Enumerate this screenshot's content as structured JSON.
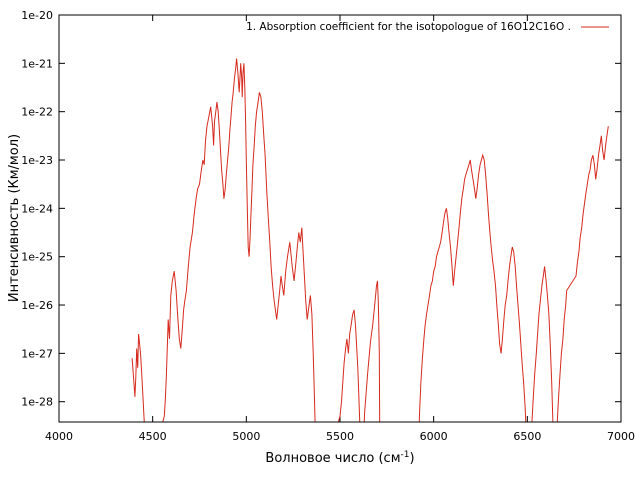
{
  "chart_data": {
    "type": "line",
    "title": "",
    "xlabel": "Волновое число (см",
    "xlabel_sup": "-1",
    "xlabel_tail": ")",
    "ylabel": "Интенсивность (Км/мол)",
    "xlim": [
      4000,
      7000
    ],
    "ylim_log10": [
      -28.42,
      -20
    ],
    "yscale": "log",
    "grid": false,
    "legend_position": "top-right",
    "x_ticks": [
      4000,
      4500,
      5000,
      5500,
      6000,
      6500,
      7000
    ],
    "x_tick_labels": [
      "4000",
      "4500",
      "5000",
      "5500",
      "6000",
      "6500",
      "7000"
    ],
    "y_ticks_log10": [
      -20,
      -21,
      -22,
      -23,
      -24,
      -25,
      -26,
      -27,
      -28
    ],
    "y_tick_labels": [
      "1e-20",
      "1e-21",
      "1e-22",
      "1e-23",
      "1e-24",
      "1e-25",
      "1e-26",
      "1e-27",
      "1e-28"
    ],
    "series": [
      {
        "name": "1. Absorption coefficient for the isotopologue of 16O12C16O .",
        "color": "#d62a1e",
        "x": [
          4390,
          4400,
          4405,
          4410,
          4415,
          4420,
          4425,
          4430,
          4435,
          4440,
          4447,
          4455,
          4462,
          4470,
          4478,
          4483,
          4495,
          4505,
          4520,
          4533,
          4545,
          4555,
          4562,
          4567,
          4573,
          4577,
          4583,
          4590,
          4597,
          4605,
          4615,
          4625,
          4633,
          4642,
          4650,
          4658,
          4665,
          4672,
          4680,
          4690,
          4700,
          4712,
          4722,
          4732,
          4740,
          4750,
          4760,
          4768,
          4775,
          4782,
          4790,
          4800,
          4810,
          4820,
          4825,
          4830,
          4837,
          4843,
          4850,
          4856,
          4862,
          4868,
          4875,
          4880,
          4887,
          4893,
          4900,
          4907,
          4912,
          4918,
          4924,
          4930,
          4937,
          4943,
          4948,
          4955,
          4962,
          4966,
          4970,
          4975,
          4978,
          4982,
          4987,
          4992,
          4996,
          5000,
          5005,
          5010,
          5015,
          5020,
          5025,
          5030,
          5035,
          5042,
          5048,
          5055,
          5063,
          5070,
          5078,
          5085,
          5093,
          5100,
          5105,
          5110,
          5117,
          5125,
          5132,
          5140,
          5148,
          5155,
          5162,
          5170,
          5178,
          5185,
          5192,
          5200,
          5210,
          5220,
          5232,
          5245,
          5255,
          5265,
          5272,
          5280,
          5288,
          5296,
          5303,
          5310,
          5317,
          5325,
          5335,
          5342,
          5350,
          5357,
          5363,
          5368,
          5373,
          5500,
          5508,
          5515,
          5522,
          5530,
          5537,
          5545,
          5552,
          5560,
          5567,
          5575,
          5582,
          5588,
          5595,
          5600,
          5605,
          5612,
          5618,
          5625,
          5632,
          5640,
          5648,
          5655,
          5662,
          5668,
          5675,
          5680,
          5685,
          5690,
          5695,
          5700,
          5705,
          5710,
          5712,
          5910,
          5918,
          5925,
          5932,
          5940,
          5948,
          5955,
          5962,
          5970,
          5978,
          5985,
          5993,
          6000,
          6008,
          6015,
          6022,
          6030,
          6037,
          6045,
          6052,
          6060,
          6068,
          6075,
          6082,
          6090,
          6098,
          6105,
          6112,
          6120,
          6128,
          6135,
          6142,
          6150,
          6158,
          6165,
          6172,
          6180,
          6188,
          6195,
          6202,
          6210,
          6218,
          6225,
          6232,
          6240,
          6248,
          6255,
          6262,
          6270,
          6277,
          6285,
          6292,
          6300,
          6307,
          6315,
          6322,
          6330,
          6337,
          6345,
          6352,
          6360,
          6367,
          6375,
          6382,
          6390,
          6397,
          6405,
          6412,
          6420,
          6427,
          6435,
          6442,
          6450,
          6458,
          6465,
          6472,
          6480,
          6488,
          6495,
          6502,
          6510,
          6518,
          6525,
          6532,
          6540,
          6548,
          6555,
          6562,
          6570,
          6578,
          6585,
          6592,
          6600,
          6607,
          6615,
          6622,
          6630,
          6637,
          6645,
          6652,
          6660,
          6667,
          6675,
          6682,
          6690,
          6697,
          6705,
          6710,
          6760,
          6768,
          6775,
          6782,
          6790,
          6798,
          6805,
          6812,
          6820,
          6828,
          6835,
          6842,
          6850,
          6858,
          6865,
          6872,
          6880,
          6888,
          6895,
          6902,
          6910,
          6918,
          6925,
          6932,
          6940,
          6948,
          6955,
          6962,
          6970,
          6978,
          6985,
          6992,
          7000
        ],
        "log10_y": [
          -27.1,
          -27.6,
          -27.9,
          -27.5,
          -26.9,
          -27.3,
          -26.6,
          -26.8,
          -27.0,
          -27.3,
          -27.8,
          -28.4,
          -28.6,
          -28.8,
          -29.2,
          -28.8,
          -28.9,
          -29.0,
          -29.1,
          -28.9,
          -28.7,
          -28.4,
          -28.3,
          -28.0,
          -27.5,
          -27.0,
          -26.3,
          -26.7,
          -25.8,
          -25.5,
          -25.3,
          -25.7,
          -26.2,
          -26.7,
          -26.9,
          -26.5,
          -26.1,
          -25.9,
          -25.7,
          -25.2,
          -24.8,
          -24.5,
          -24.1,
          -23.8,
          -23.6,
          -23.5,
          -23.2,
          -23.0,
          -23.1,
          -22.6,
          -22.3,
          -22.1,
          -21.9,
          -22.3,
          -22.7,
          -22.2,
          -22.0,
          -21.8,
          -22.0,
          -22.4,
          -22.8,
          -23.2,
          -23.5,
          -23.8,
          -23.6,
          -23.3,
          -23.0,
          -22.7,
          -22.4,
          -22.1,
          -21.8,
          -21.6,
          -21.3,
          -21.1,
          -20.9,
          -21.2,
          -21.6,
          -21.3,
          -21.0,
          -21.3,
          -21.7,
          -21.2,
          -21.0,
          -21.5,
          -22.2,
          -23.0,
          -24.0,
          -24.8,
          -25.0,
          -24.6,
          -24.1,
          -23.6,
          -23.1,
          -22.7,
          -22.3,
          -22.0,
          -21.8,
          -21.6,
          -21.7,
          -22.0,
          -22.5,
          -22.9,
          -23.3,
          -23.7,
          -24.2,
          -24.7,
          -25.2,
          -25.6,
          -25.9,
          -26.1,
          -26.3,
          -26.0,
          -25.7,
          -25.4,
          -25.6,
          -25.8,
          -25.3,
          -25.0,
          -24.7,
          -25.2,
          -25.5,
          -25.1,
          -24.8,
          -24.5,
          -24.7,
          -24.4,
          -24.9,
          -25.4,
          -25.9,
          -26.3,
          -26.0,
          -25.8,
          -26.2,
          -27.0,
          -27.8,
          -28.6,
          -30.0,
          -28.3,
          -28.0,
          -27.6,
          -27.2,
          -26.9,
          -26.7,
          -27.0,
          -26.6,
          -26.4,
          -26.2,
          -26.1,
          -26.4,
          -26.8,
          -27.3,
          -27.8,
          -28.4,
          -29.0,
          -29.6,
          -28.8,
          -28.2,
          -27.8,
          -27.4,
          -27.1,
          -26.8,
          -26.6,
          -26.4,
          -26.2,
          -26.0,
          -25.8,
          -25.6,
          -25.5,
          -26.0,
          -27.0,
          -28.5,
          -30.0,
          -29.0,
          -28.2,
          -27.6,
          -27.1,
          -26.7,
          -26.4,
          -26.2,
          -26.0,
          -25.8,
          -25.6,
          -25.5,
          -25.3,
          -25.2,
          -25.0,
          -24.9,
          -24.8,
          -24.7,
          -24.5,
          -24.3,
          -24.1,
          -24.0,
          -24.2,
          -24.5,
          -24.8,
          -25.2,
          -25.6,
          -25.3,
          -25.0,
          -24.7,
          -24.4,
          -24.1,
          -23.8,
          -23.6,
          -23.4,
          -23.3,
          -23.2,
          -23.1,
          -23.0,
          -23.2,
          -23.4,
          -23.6,
          -23.8,
          -23.6,
          -23.3,
          -23.1,
          -23.0,
          -22.9,
          -23.0,
          -23.3,
          -23.7,
          -24.1,
          -24.5,
          -24.8,
          -25.1,
          -25.3,
          -25.6,
          -26.0,
          -26.4,
          -26.8,
          -27.0,
          -26.7,
          -26.3,
          -26.0,
          -25.8,
          -25.5,
          -25.2,
          -25.0,
          -24.8,
          -24.9,
          -25.2,
          -25.6,
          -26.0,
          -26.4,
          -26.8,
          -27.2,
          -27.6,
          -28.1,
          -28.7,
          -29.3,
          -30.0,
          -29.0,
          -28.4,
          -27.9,
          -27.4,
          -27.0,
          -26.6,
          -26.2,
          -25.9,
          -25.6,
          -25.4,
          -25.2,
          -25.5,
          -25.8,
          -26.2,
          -26.8,
          -27.6,
          -28.5,
          -30.0,
          -28.9,
          -28.4,
          -27.9,
          -27.4,
          -27.0,
          -26.7,
          -26.3,
          -26.0,
          -25.7,
          -25.4,
          -25.1,
          -24.9,
          -24.6,
          -24.4,
          -24.1,
          -23.9,
          -23.7,
          -23.5,
          -23.3,
          -23.2,
          -23.0,
          -22.9,
          -23.1,
          -23.4,
          -23.2,
          -22.9,
          -22.7,
          -22.5,
          -22.8,
          -23.0,
          -22.7,
          -22.5,
          -22.3
        ]
      }
    ]
  }
}
